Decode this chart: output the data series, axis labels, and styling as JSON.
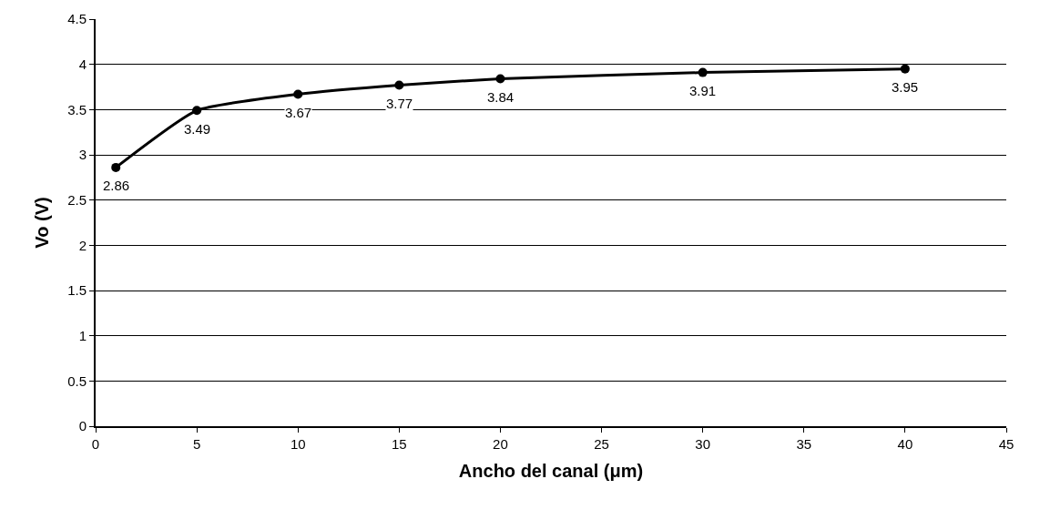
{
  "chart_data": {
    "type": "line",
    "xlabel": "Ancho del canal (μm)",
    "ylabel": "Vo (V)",
    "x": [
      1,
      5,
      10,
      15,
      20,
      30,
      40
    ],
    "series": [
      {
        "color": "#000000",
        "values": [
          2.86,
          3.49,
          3.67,
          3.77,
          3.84,
          3.91,
          3.95
        ]
      }
    ],
    "xlim": [
      0,
      45
    ],
    "xticks": [
      0,
      5,
      10,
      15,
      20,
      25,
      30,
      35,
      40,
      45
    ],
    "ylim": [
      0,
      4.5
    ],
    "yticks": [
      0,
      0.5,
      1,
      1.5,
      2,
      2.5,
      3,
      3.5,
      4,
      4.5
    ],
    "grid": "y",
    "legend": false,
    "marker": "circle",
    "line_style": "solid",
    "data_labels": true
  }
}
